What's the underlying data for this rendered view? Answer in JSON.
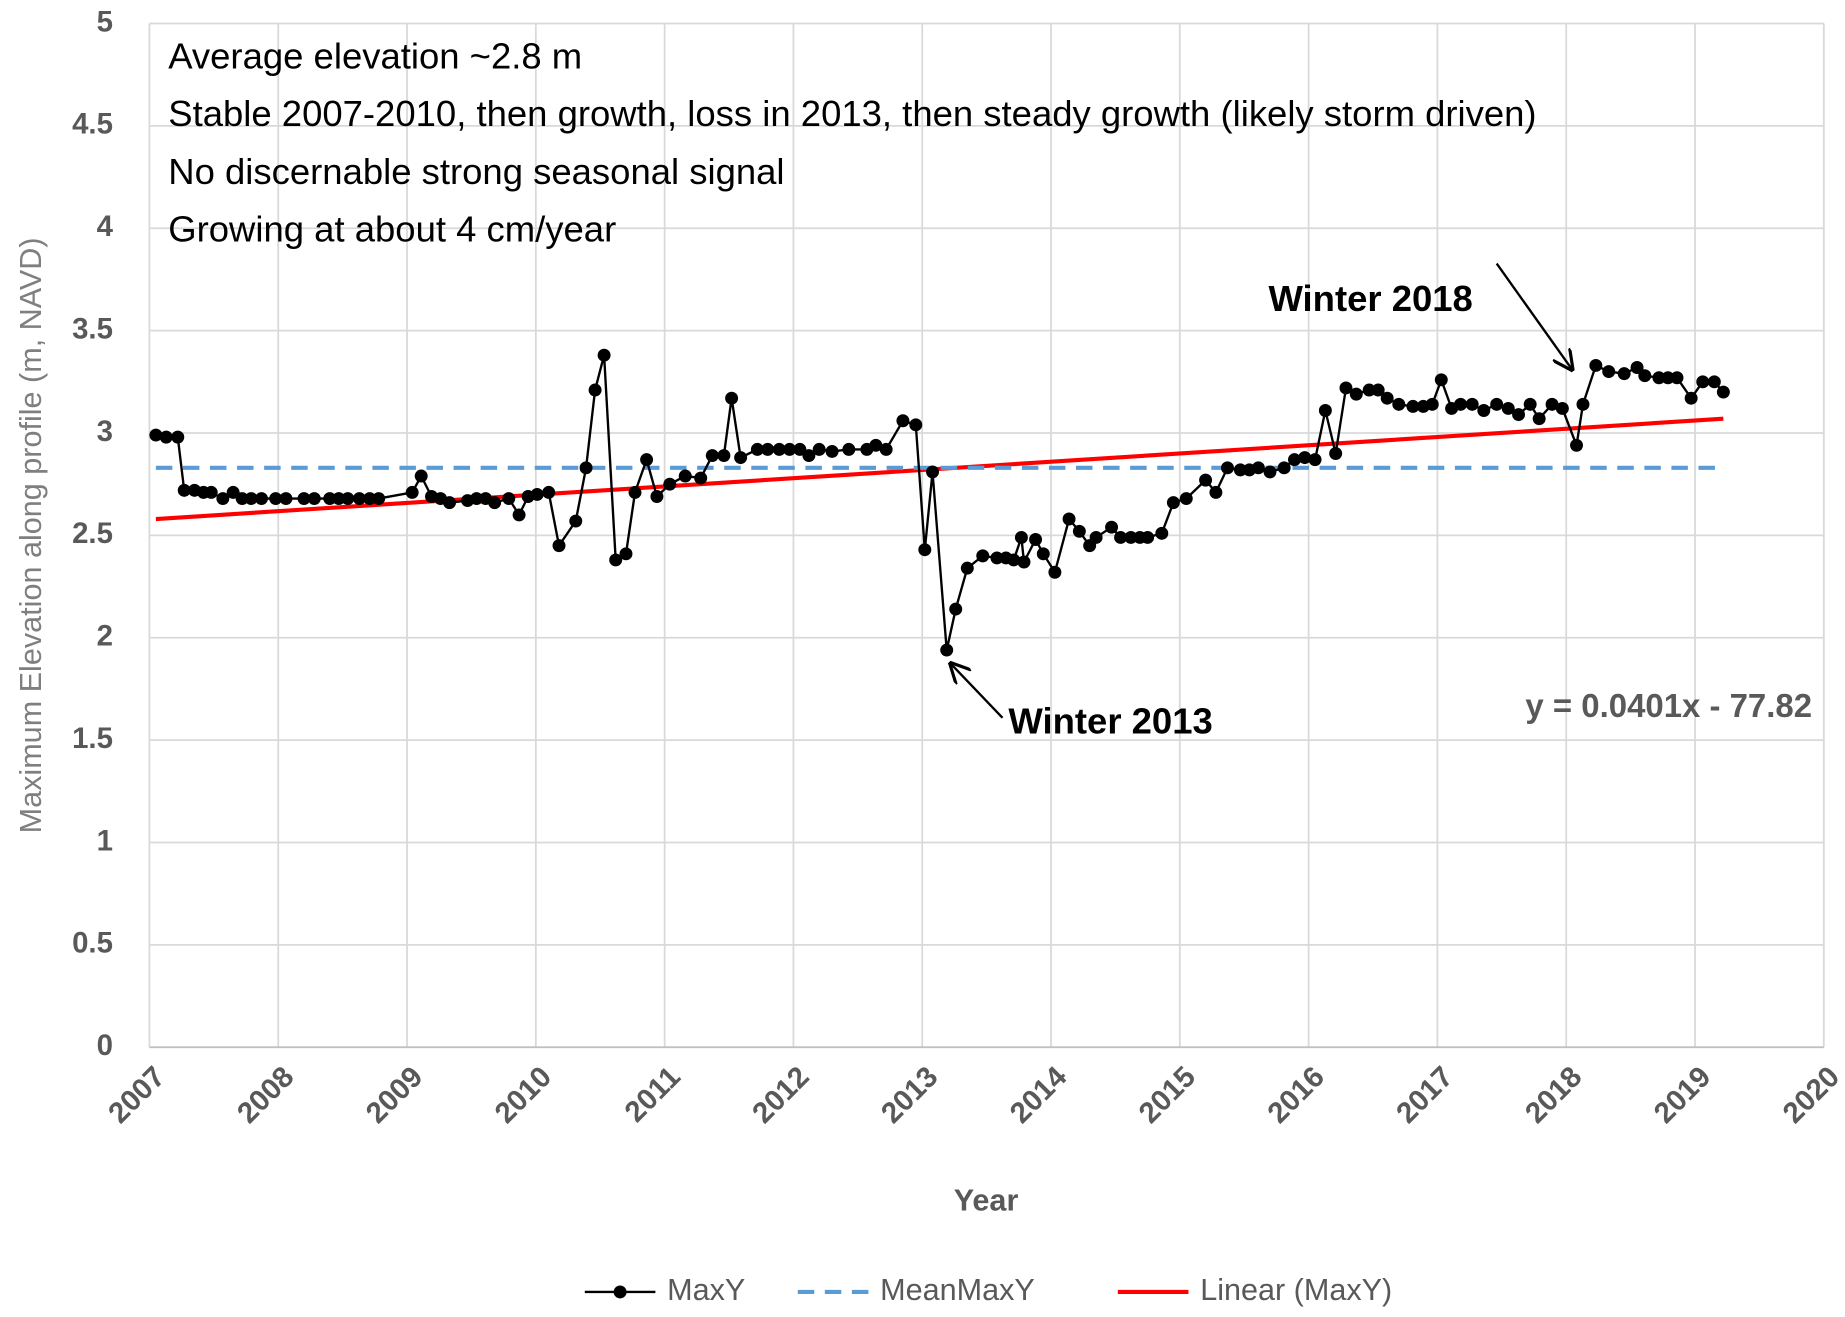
{
  "chart_data": {
    "type": "line",
    "x_label": "Year",
    "y_label": "Maximum Elevation along profile (m, NAVD)",
    "annotations": [
      "Average elevation ~2.8 m",
      "Stable 2007-2010, then growth, loss in 2013, then steady growth (likely storm driven)",
      "No discernable strong seasonal signal",
      "Growing at about 4 cm/year",
      "Winter 2018",
      "Winter 2013",
      "y = 0.0401x - 77.82"
    ],
    "xlim": [
      2007,
      2020
    ],
    "xticks": [
      2007,
      2008,
      2009,
      2010,
      2011,
      2012,
      2013,
      2014,
      2015,
      2016,
      2017,
      2018,
      2019,
      2020
    ],
    "ylim": [
      0,
      5
    ],
    "yticks": [
      0,
      0.5,
      1,
      1.5,
      2,
      2.5,
      3,
      3.5,
      4,
      4.5,
      5
    ],
    "grid": true,
    "legend": "bottom",
    "series": [
      {
        "name": "MaxY",
        "color": "#000000",
        "markers": true,
        "line_style": "solid",
        "x": [
          2007.05,
          2007.13,
          2007.22,
          2007.27,
          2007.35,
          2007.42,
          2007.48,
          2007.57,
          2007.65,
          2007.72,
          2007.79,
          2007.87,
          2007.98,
          2008.06,
          2008.2,
          2008.28,
          2008.4,
          2008.47,
          2008.54,
          2008.63,
          2008.71,
          2008.78,
          2009.04,
          2009.11,
          2009.19,
          2009.26,
          2009.33,
          2009.47,
          2009.54,
          2009.61,
          2009.68,
          2009.79,
          2009.87,
          2009.94,
          2010.01,
          2010.1,
          2010.18,
          2010.31,
          2010.39,
          2010.46,
          2010.53,
          2010.62,
          2010.7,
          2010.77,
          2010.86,
          2010.94,
          2011.04,
          2011.16,
          2011.28,
          2011.37,
          2011.46,
          2011.52,
          2011.59,
          2011.72,
          2011.8,
          2011.89,
          2011.97,
          2012.05,
          2012.12,
          2012.2,
          2012.3,
          2012.43,
          2012.57,
          2012.64,
          2012.72,
          2012.85,
          2012.95,
          2013.02,
          2013.08,
          2013.19,
          2013.26,
          2013.35,
          2013.47,
          2013.58,
          2013.65,
          2013.71,
          2013.77,
          2013.79,
          2013.88,
          2013.94,
          2014.03,
          2014.14,
          2014.22,
          2014.3,
          2014.35,
          2014.47,
          2014.54,
          2014.62,
          2014.69,
          2014.75,
          2014.86,
          2014.95,
          2015.05,
          2015.2,
          2015.28,
          2015.37,
          2015.47,
          2015.54,
          2015.61,
          2015.7,
          2015.81,
          2015.89,
          2015.97,
          2016.05,
          2016.13,
          2016.21,
          2016.29,
          2016.37,
          2016.47,
          2016.54,
          2016.61,
          2016.7,
          2016.81,
          2016.89,
          2016.96,
          2017.03,
          2017.11,
          2017.18,
          2017.27,
          2017.36,
          2017.46,
          2017.55,
          2017.63,
          2017.72,
          2017.79,
          2017.89,
          2017.97,
          2018.08,
          2018.13,
          2018.23,
          2018.33,
          2018.45,
          2018.55,
          2018.61,
          2018.72,
          2018.79,
          2018.86,
          2018.97,
          2019.06,
          2019.15,
          2019.22
        ],
        "values": [
          2.99,
          2.98,
          2.98,
          2.72,
          2.72,
          2.71,
          2.71,
          2.68,
          2.71,
          2.68,
          2.68,
          2.68,
          2.68,
          2.68,
          2.68,
          2.68,
          2.68,
          2.68,
          2.68,
          2.68,
          2.68,
          2.68,
          2.71,
          2.79,
          2.69,
          2.68,
          2.66,
          2.67,
          2.68,
          2.68,
          2.66,
          2.68,
          2.6,
          2.69,
          2.7,
          2.71,
          2.45,
          2.57,
          2.83,
          3.21,
          3.38,
          2.38,
          2.41,
          2.71,
          2.87,
          2.69,
          2.75,
          2.79,
          2.78,
          2.89,
          2.89,
          3.17,
          2.88,
          2.92,
          2.92,
          2.92,
          2.92,
          2.92,
          2.89,
          2.92,
          2.91,
          2.92,
          2.92,
          2.94,
          2.92,
          3.06,
          3.04,
          2.43,
          2.81,
          1.94,
          2.14,
          2.34,
          2.4,
          2.39,
          2.39,
          2.38,
          2.49,
          2.37,
          2.48,
          2.41,
          2.32,
          2.58,
          2.52,
          2.45,
          2.49,
          2.54,
          2.49,
          2.49,
          2.49,
          2.49,
          2.51,
          2.66,
          2.68,
          2.77,
          2.71,
          2.83,
          2.82,
          2.82,
          2.83,
          2.81,
          2.83,
          2.87,
          2.88,
          2.87,
          3.11,
          2.9,
          3.22,
          3.19,
          3.21,
          3.21,
          3.17,
          3.14,
          3.13,
          3.13,
          3.14,
          3.26,
          3.12,
          3.14,
          3.14,
          3.11,
          3.14,
          3.12,
          3.09,
          3.14,
          3.07,
          3.14,
          3.12,
          2.94,
          3.14,
          3.33,
          3.3,
          3.29,
          3.32,
          3.28,
          3.27,
          3.27,
          3.27,
          3.17,
          3.25,
          3.25,
          3.2
        ]
      },
      {
        "name": "MeanMaxY",
        "color": "#5b9bd5",
        "markers": false,
        "line_style": "dashed",
        "x": [
          2007.05,
          2019.22
        ],
        "values": [
          2.83,
          2.83
        ]
      },
      {
        "name": "Linear (MaxY)",
        "color": "#ff0000",
        "markers": false,
        "line_style": "solid",
        "x": [
          2007.05,
          2019.22
        ],
        "values": [
          2.58,
          3.07
        ]
      }
    ]
  }
}
